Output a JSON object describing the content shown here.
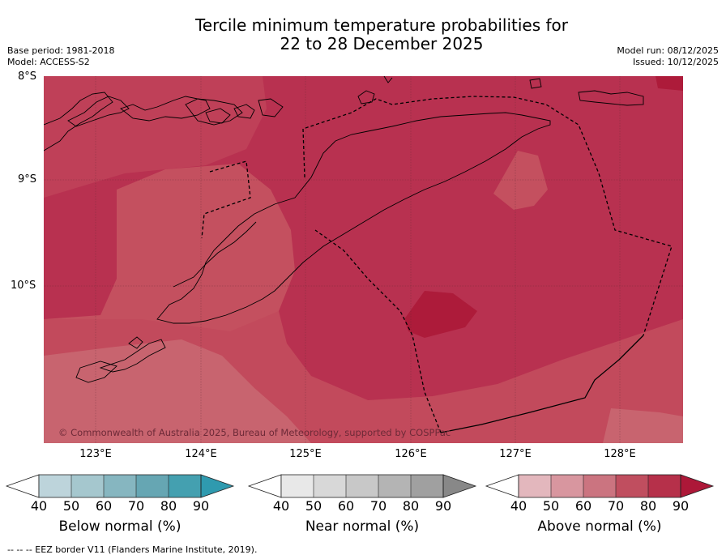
{
  "title_line1": "Tercile minimum temperature probabilities for",
  "title_line2": "22 to 28 December 2025",
  "meta": {
    "base_period": "Base period: 1981-2018",
    "model": "Model: ACCESS-S2",
    "model_run": "Model run: 08/12/2025",
    "issued": "Issued: 10/12/2025"
  },
  "lat_labels": [
    "8°S",
    "9°S",
    "10°S"
  ],
  "lon_labels": [
    "123°E",
    "124°E",
    "125°E",
    "126°E",
    "127°E",
    "128°E"
  ],
  "copyright": "© Commonwealth of Australia 2025, Bureau of Meteorology, supported by COSPPac",
  "colorbars": {
    "below": {
      "title": "Below normal (%)",
      "ticks": [
        "40",
        "50",
        "60",
        "70",
        "80",
        "90"
      ],
      "colors": [
        "#bdd4db",
        "#a5c7ce",
        "#86b6c0",
        "#66a6b3",
        "#44a0b0",
        "#2f9aaf"
      ]
    },
    "near": {
      "title": "Near normal (%)",
      "ticks": [
        "40",
        "50",
        "60",
        "70",
        "80",
        "90"
      ],
      "colors": [
        "#e8e8e8",
        "#d8d8d8",
        "#c8c8c8",
        "#b4b4b4",
        "#a0a0a0",
        "#888888"
      ]
    },
    "above": {
      "title": "Above normal (%)",
      "ticks": [
        "40",
        "50",
        "60",
        "70",
        "80",
        "90"
      ],
      "colors": [
        "#e3b7bd",
        "#d8969f",
        "#cb7480",
        "#c04e5f",
        "#b6304a",
        "#ad1838"
      ]
    }
  },
  "footer": "--  --  -- EEZ border V11 (Flanders Marine Institute, 2019)."
}
